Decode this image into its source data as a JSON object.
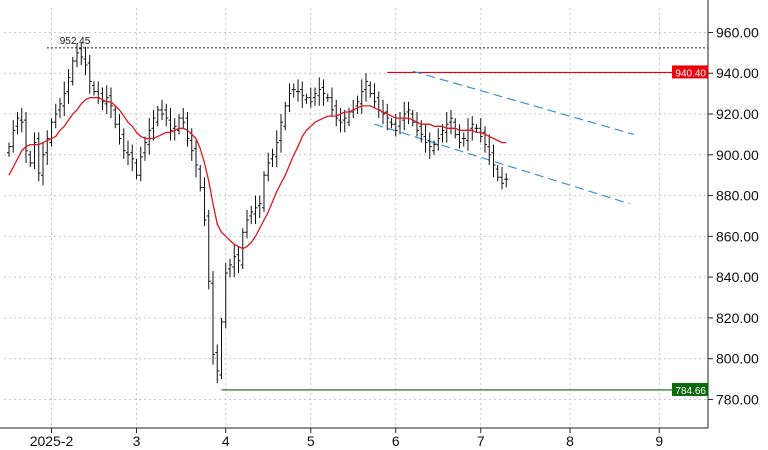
{
  "chart_data": {
    "type": "ohlc",
    "title": "",
    "xlabel": "",
    "ylabel": "",
    "ylim": [
      766,
      972
    ],
    "yticks": [
      780,
      800,
      820,
      840,
      860,
      880,
      900,
      920,
      940,
      960
    ],
    "ytick_labels": [
      "780.00",
      "800.00",
      "820.00",
      "840.00",
      "860.00",
      "880.00",
      "900.00",
      "920.00",
      "940.00",
      "960.00"
    ],
    "x_tick_labels": [
      {
        "label": "2025-2",
        "bar_index": 10
      },
      {
        "label": "3",
        "bar_index": 30
      },
      {
        "label": "4",
        "bar_index": 51
      },
      {
        "label": "5",
        "bar_index": 71
      },
      {
        "label": "6",
        "bar_index": 91
      },
      {
        "label": "7",
        "bar_index": 111
      },
      {
        "label": "8",
        "bar_index": 132
      },
      {
        "label": "9",
        "bar_index": 153
      }
    ],
    "grid": true,
    "close": [
      904,
      912,
      918,
      916,
      902,
      896,
      906,
      891,
      900,
      908,
      916,
      920,
      925,
      930,
      938,
      946,
      950,
      948,
      944,
      936,
      931,
      928,
      926,
      928,
      924,
      915,
      908,
      902,
      900,
      898,
      890,
      899,
      906,
      912,
      918,
      922,
      920,
      918,
      912,
      914,
      918,
      916,
      908,
      902,
      895,
      884,
      868,
      838,
      802,
      794,
      818,
      842,
      846,
      850,
      848,
      862,
      868,
      872,
      874,
      876,
      890,
      896,
      900,
      906,
      916,
      924,
      930,
      932,
      931,
      929,
      928,
      926,
      930,
      932,
      930,
      928,
      922,
      918,
      916,
      918,
      921,
      922,
      926,
      931,
      936,
      930,
      926,
      922,
      920,
      918,
      915,
      912,
      918,
      920,
      922,
      916,
      912,
      910,
      906,
      904,
      905,
      908,
      912,
      915,
      918,
      910,
      906,
      908,
      912,
      915,
      913,
      909,
      905,
      900,
      895,
      889,
      886,
      888
    ],
    "ma": [
      890,
      894,
      898,
      902,
      904,
      905,
      905,
      905,
      906,
      907,
      908,
      909,
      912,
      914,
      917,
      920,
      922,
      925,
      927,
      928,
      928,
      928,
      927,
      926,
      926,
      924,
      922,
      919,
      916,
      914,
      911,
      909,
      908,
      908,
      908,
      909,
      910,
      911,
      911,
      912,
      913,
      913,
      912,
      910,
      908,
      903,
      896,
      887,
      876,
      866,
      862,
      860,
      858,
      856,
      855,
      854,
      855,
      857,
      860,
      864,
      868,
      872,
      877,
      882,
      886,
      890,
      895,
      900,
      904,
      909,
      912,
      914,
      916,
      917,
      918,
      919,
      919,
      919,
      920,
      921,
      921,
      922,
      923,
      924,
      924,
      924,
      923,
      922,
      921,
      920,
      919,
      918,
      918,
      918,
      918,
      917,
      916,
      915,
      915,
      915,
      914,
      914,
      914,
      913,
      913,
      913,
      912,
      912,
      912,
      912,
      911,
      911,
      910,
      909,
      908,
      907,
      906,
      906
    ],
    "ma_style": {
      "color": "#e0181e"
    },
    "bar_color": "#111111",
    "annotations": [
      {
        "type": "peak",
        "label": "952.45",
        "value": 952.45,
        "bar_index": 16
      },
      {
        "type": "level",
        "label": "940.40",
        "value": 940.4,
        "from_bar": 89,
        "color": "#e8000b"
      },
      {
        "type": "level",
        "label": "784.66",
        "value": 784.66,
        "from_bar": 50,
        "color": "#0b6b0b"
      },
      {
        "type": "channel",
        "value_start": 941,
        "bar_start": 95,
        "value_end": 910,
        "bar_end": 147,
        "color": "#3a8fe0"
      },
      {
        "type": "channel",
        "value_start": 915,
        "bar_start": 86,
        "value_end": 876,
        "bar_end": 146,
        "color": "#3a8fe0"
      }
    ]
  }
}
